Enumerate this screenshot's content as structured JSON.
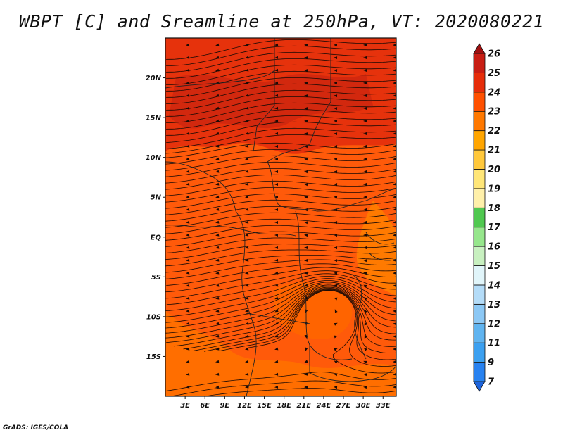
{
  "title": "WBPT [C] and Sreamline at 250hPa, VT: 2020080221",
  "footer": "GrADS: IGES/COLA",
  "map": {
    "lat_ticks": [
      "20N",
      "15N",
      "10N",
      "5N",
      "EQ",
      "5S",
      "10S",
      "15S"
    ],
    "lon_ticks": [
      "3E",
      "6E",
      "9E",
      "12E",
      "15E",
      "18E",
      "21E",
      "24E",
      "27E",
      "30E",
      "33E"
    ],
    "lon_range": [
      0,
      35
    ],
    "lat_range": [
      -20,
      25
    ]
  },
  "colorbar": {
    "labels": [
      "7",
      "9",
      "11",
      "12",
      "13",
      "14",
      "15",
      "16",
      "17",
      "18",
      "19",
      "20",
      "21",
      "22",
      "23",
      "24",
      "25",
      "26"
    ],
    "colors": [
      "#1e64dc",
      "#2882f0",
      "#3ca0f0",
      "#60b4f0",
      "#8cc8f5",
      "#b4dcf8",
      "#e1f5fa",
      "#c8f0c0",
      "#96e68c",
      "#50c850",
      "#fff0aa",
      "#ffe678",
      "#ffc83c",
      "#ffa500",
      "#ff7800",
      "#ff5000",
      "#e62d0a",
      "#c81e14",
      "#a01010"
    ]
  }
}
